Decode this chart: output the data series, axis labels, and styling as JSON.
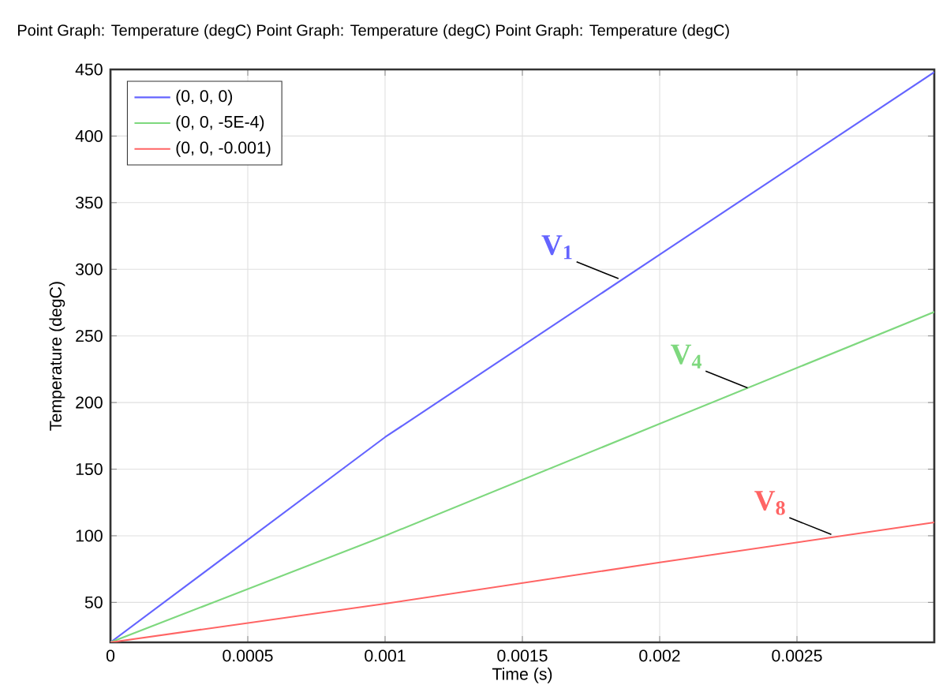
{
  "chart_data": {
    "type": "line",
    "title": "Point Graph: Temperature (degC)  Point Graph: Temperature (degC)  Point Graph: Temperature (degC)",
    "xlabel": "Time (s)",
    "ylabel": "Temperature (degC)",
    "x": [
      0,
      0.001,
      0.002,
      0.003
    ],
    "series": [
      {
        "name": "(0, 0, 0)",
        "color": "#6464ff",
        "values": [
          20,
          174,
          311,
          448
        ]
      },
      {
        "name": "(0, 0, -5E-4)",
        "color": "#7ed87e",
        "values": [
          20,
          100,
          184,
          268
        ]
      },
      {
        "name": "(0, 0, -0.001)",
        "color": "#ff6464",
        "values": [
          20,
          49,
          80,
          110
        ]
      }
    ],
    "annotations": [
      {
        "text": "V$_{1}$",
        "x": 0.00185,
        "y": 293
      },
      {
        "text": "V$_{4}$",
        "x": 0.00232,
        "y": 211
      },
      {
        "text": "V$_{8}$",
        "x": 0.002625,
        "y": 101
      }
    ],
    "xlim": [
      0,
      0.003
    ],
    "ylim": [
      20,
      450
    ],
    "xticks": [
      0,
      0.0005,
      0.001,
      0.0015,
      0.002,
      0.0025,
      {
        "value": 0.003,
        "label": null
      }
    ],
    "yticks": [
      50,
      100,
      150,
      200,
      250,
      300,
      350,
      400,
      450
    ],
    "grid": true,
    "legend": "top left",
    "marker": "none",
    "line_style": "solid"
  }
}
